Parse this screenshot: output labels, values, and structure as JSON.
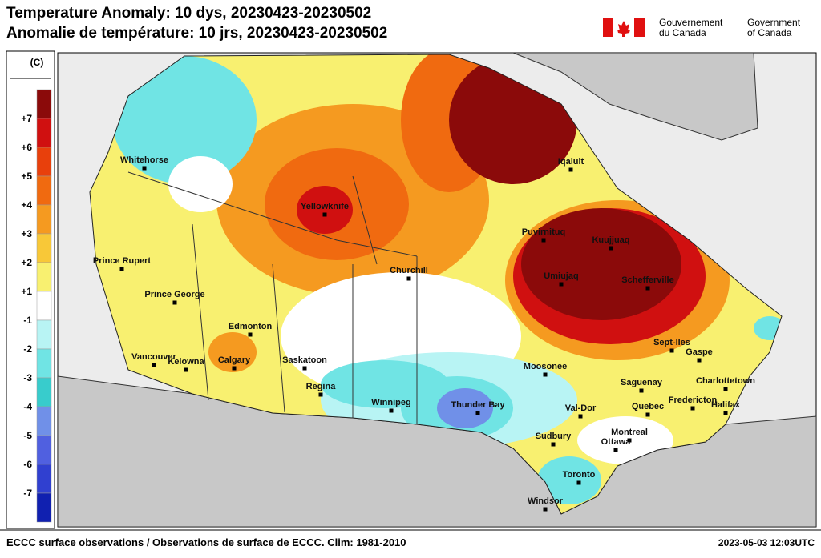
{
  "header": {
    "title_en": "Temperature Anomaly: 10 dys, 20230423-20230502",
    "title_fr": "Anomalie de température: 10 jrs, 20230423-20230502",
    "gov_fr": [
      "Gouvernement",
      "du Canada"
    ],
    "gov_en": [
      "Government",
      "of Canada"
    ]
  },
  "legend": {
    "unit": "(C)",
    "ticks": [
      "+7",
      "+6",
      "+5",
      "+4",
      "+3",
      "+2",
      "+1",
      "-1",
      "-2",
      "-3",
      "-4",
      "-5",
      "-6",
      "-7"
    ],
    "colors": [
      "#8b0a0a",
      "#d01010",
      "#e8400c",
      "#f06a10",
      "#f59a20",
      "#f8c838",
      "#f8f070",
      "#ffffff",
      "#b8f4f4",
      "#70e4e4",
      "#38cccc",
      "#7090e8",
      "#5060e0",
      "#3040d0",
      "#1020b0"
    ]
  },
  "cities": [
    "Whitehorse",
    "Yellowknife",
    "Iqaluit",
    "Puvirnituq",
    "Kuujjuaq",
    "Umiujaq",
    "Schefferville",
    "Churchill",
    "Prince Rupert",
    "Prince George",
    "Edmonton",
    "Calgary",
    "Vancouver",
    "Kelowna",
    "Saskatoon",
    "Regina",
    "Winnipeg",
    "Thunder Bay",
    "Moosonee",
    "Sept-Iles",
    "Gaspe",
    "Saguenay",
    "Charlottetown",
    "Fredericton",
    "Halifax",
    "Quebec",
    "Val-Dor",
    "Montreal",
    "Ottawa",
    "Sudbury",
    "Toronto",
    "Windsor"
  ],
  "footer": {
    "left": "ECCC surface observations / Observations de surface de ECCC. Clim: 1981-2010",
    "right": "2023-05-03 12:03UTC"
  }
}
